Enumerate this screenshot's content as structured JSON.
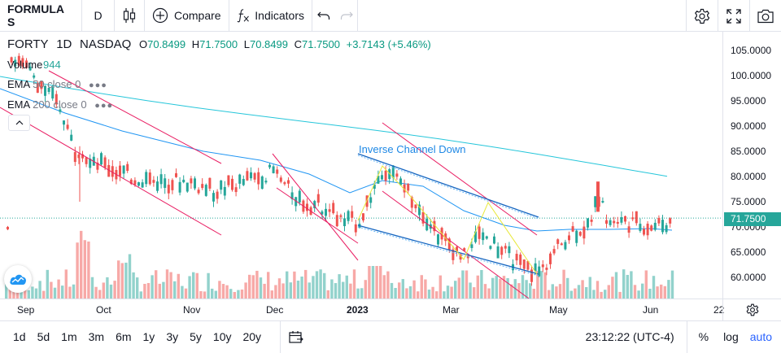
{
  "toolbar": {
    "symbol": "FORMULA S",
    "interval": "D",
    "compare_label": "Compare",
    "indicators_label": "Indicators"
  },
  "legend": {
    "ticker": "FORTY",
    "interval": "1D",
    "exchange": "NASDAQ",
    "o_label": "O",
    "o_value": "70.8499",
    "h_label": "H",
    "h_value": "71.7500",
    "l_label": "L",
    "l_value": "70.8499",
    "c_label": "C",
    "c_value": "71.7500",
    "change": "+3.7143 (+5.46%)",
    "volume_label": "Volume",
    "volume_value": "944",
    "ema50_label": "EMA",
    "ema50_params": "50 close 0",
    "ema200_label": "EMA",
    "ema200_params": "200 close 0"
  },
  "annotation": {
    "channel_label": "Inverse Channel Down"
  },
  "price_axis": {
    "labels": [
      "105.0000",
      "100.0000",
      "95.0000",
      "90.0000",
      "85.0000",
      "80.0000",
      "75.0000",
      "70.0000",
      "65.0000",
      "60.0000"
    ],
    "current_price": "71.7500"
  },
  "time_axis": {
    "labels": [
      "Sep",
      "Oct",
      "Nov",
      "Dec",
      "2023",
      "Mar",
      "May",
      "Jun",
      "22"
    ]
  },
  "bottom": {
    "ranges": [
      "1d",
      "5d",
      "1m",
      "3m",
      "6m",
      "1y",
      "3y",
      "5y",
      "10y",
      "20y"
    ],
    "clock": "23:12:22 (UTC-4)",
    "percent_label": "%",
    "log_label": "log",
    "auto_label": "auto"
  },
  "colors": {
    "up": "#26a69a",
    "down": "#ef5350",
    "ema50": "#2196f3",
    "ema200": "#26c6da",
    "trendline": "#e91e63",
    "channel": "#1565c0",
    "pattern": "#e8e83a",
    "auto_active": "#2962ff"
  },
  "icons": {
    "bars": "candles-icon",
    "compare": "plus-circle-icon",
    "indicators": "fx-icon",
    "undo": "undo-icon",
    "redo": "redo-icon",
    "settings": "gear-icon",
    "fullscreen": "fullscreen-icon",
    "snapshot": "camera-icon",
    "calendar": "calendar-icon"
  }
}
